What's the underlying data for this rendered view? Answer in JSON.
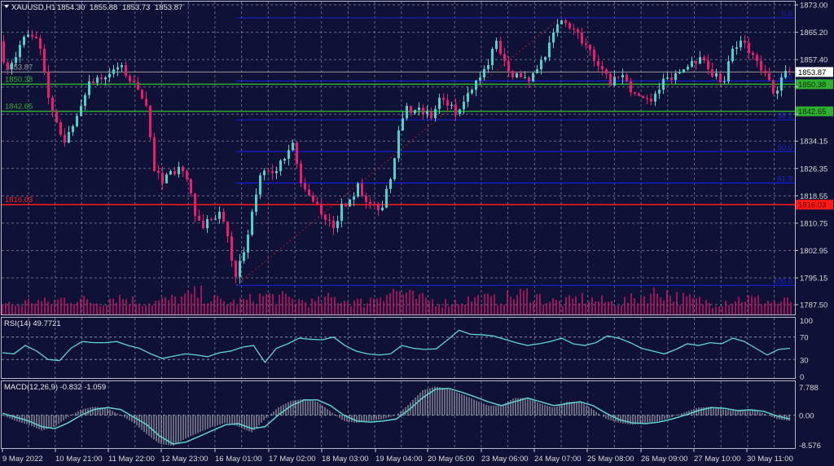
{
  "header": {
    "symbol": "XAUUSD,H1",
    "open": "1854.30",
    "high": "1855.88",
    "low": "1853.73",
    "close": "1853.87"
  },
  "colors": {
    "background": "#0f1136",
    "bull": "#4fd1c8",
    "bear": "#ee1c6c",
    "grid": "#8a8fa8",
    "fib": "#1420d0",
    "support": "#2fae2f",
    "resistance": "#ff1a1a",
    "current": "#9a9a9a",
    "volume": "#c8185e",
    "indicator": "#5fd3cf"
  },
  "chart_data": [
    {
      "type": "candlestick",
      "title": "XAUUSD,H1",
      "ylim": [
        1787.5,
        1873.0
      ],
      "y_ticks": [
        "1873.00",
        "1865.20",
        "1857.40",
        "1850.38",
        "1842.65",
        "1834.15",
        "1826.35",
        "1818.55",
        "1810.75",
        "1802.95",
        "1795.15",
        "1787.50"
      ],
      "x_ticks": [
        "9 May 2022",
        "10 May 21:00",
        "11 May 22:00",
        "12 May 23:00",
        "16 May 01:00",
        "17 May 02:00",
        "18 May 03:00",
        "19 May 04:00",
        "20 May 05:00",
        "23 May 06:00",
        "24 May 07:00",
        "25 May 08:00",
        "26 May 09:00",
        "27 May 10:00",
        "30 May 11:00"
      ],
      "grid": true,
      "closes": [
        1861.6,
        1854.6,
        1858.1,
        1863.9,
        1863.9,
        1860.5,
        1846.5,
        1839.5,
        1833.7,
        1838.4,
        1844.2,
        1851.2,
        1852.3,
        1852.3,
        1854.6,
        1855.8,
        1851.2,
        1848.8,
        1844.2,
        1825.6,
        1822.1,
        1825.6,
        1826.8,
        1823.3,
        1812.8,
        1809.3,
        1811.7,
        1814.0,
        1807.0,
        1795.4,
        1802.4,
        1814.0,
        1824.4,
        1825.6,
        1825.6,
        1829.1,
        1833.7,
        1822.1,
        1818.6,
        1816.3,
        1811.7,
        1809.3,
        1816.3,
        1817.5,
        1822.1,
        1816.8,
        1816.3,
        1815.2,
        1823.3,
        1837.2,
        1844.2,
        1843.0,
        1841.9,
        1840.7,
        1846.5,
        1844.2,
        1841.9,
        1845.4,
        1848.8,
        1852.3,
        1855.8,
        1862.8,
        1857.0,
        1852.3,
        1852.3,
        1851.2,
        1854.6,
        1858.1,
        1865.1,
        1868.6,
        1866.3,
        1865.1,
        1861.6,
        1857.0,
        1854.6,
        1850.0,
        1852.3,
        1851.2,
        1847.7,
        1846.5,
        1845.4,
        1848.8,
        1852.3,
        1853.5,
        1854.6,
        1857.0,
        1858.1,
        1854.6,
        1853.5,
        1851.2,
        1860.5,
        1862.8,
        1859.3,
        1857.0,
        1853.5,
        1847.7,
        1852.3,
        1853.87
      ],
      "volume_relative": [
        5,
        4,
        6,
        5,
        7,
        6,
        5,
        8,
        6,
        5,
        6,
        7,
        9,
        6,
        5,
        6,
        8,
        7,
        6,
        5,
        7,
        6,
        5,
        9,
        10,
        7,
        6,
        5,
        6,
        7,
        6,
        8,
        9,
        6,
        5,
        7,
        6,
        5,
        6,
        8,
        10,
        7,
        6,
        5,
        6,
        7,
        6,
        5,
        6
      ],
      "price_lines": [
        {
          "label": "1853.87",
          "price": 1853.87,
          "kind": "current"
        },
        {
          "label": "1850.38",
          "price": 1850.38,
          "kind": "support"
        },
        {
          "label": "1842.65",
          "price": 1842.65,
          "kind": "support"
        },
        {
          "label": "1816.03",
          "price": 1816.03,
          "kind": "resistance"
        }
      ],
      "fibonacci": [
        {
          "label": "0.0",
          "price": 1869.3
        },
        {
          "label": "23.6",
          "price": 1851.3
        },
        {
          "label": "38.2",
          "price": 1840.2
        },
        {
          "label": "50.0",
          "price": 1831.2
        },
        {
          "label": "61.8",
          "price": 1822.2
        },
        {
          "label": "100.0",
          "price": 1793.0
        }
      ]
    },
    {
      "type": "line",
      "title": "RSI(14) 49.7721",
      "ylim": [
        0,
        100
      ],
      "y_ticks": [
        "100",
        "70",
        "30",
        "0"
      ],
      "levels": [
        70,
        30
      ],
      "values": [
        42,
        40,
        55,
        45,
        30,
        28,
        50,
        62,
        60,
        60,
        62,
        55,
        50,
        40,
        32,
        36,
        40,
        38,
        35,
        42,
        45,
        52,
        55,
        25,
        50,
        58,
        68,
        66,
        65,
        70,
        55,
        45,
        40,
        38,
        40,
        55,
        50,
        48,
        49,
        65,
        82,
        75,
        74,
        72,
        66,
        60,
        55,
        58,
        62,
        68,
        58,
        55,
        60,
        72,
        68,
        60,
        50,
        45,
        40,
        48,
        58,
        55,
        60,
        58,
        68,
        62,
        50,
        38,
        48,
        50
      ]
    },
    {
      "type": "histogram+line",
      "title": "MACD(12,26,9) -0.832 -1.059",
      "ylim": [
        -8.576,
        7.788
      ],
      "y_ticks": [
        "7.788",
        "0.00",
        "-8.576"
      ],
      "main": [
        0,
        -1.5,
        -2.5,
        -4,
        -3,
        -0.5,
        1.5,
        2.2,
        1.8,
        0,
        -2,
        -5,
        -7.5,
        -8,
        -6,
        -4.5,
        -3,
        -2,
        -3,
        -4.5,
        -1,
        2,
        3.8,
        4.2,
        3.5,
        1,
        -1.5,
        -2,
        -1.5,
        -1,
        0,
        3,
        6.5,
        7.5,
        6.8,
        5.5,
        4,
        2.5,
        2.5,
        4.5,
        4.5,
        3,
        2,
        3.5,
        3.5,
        1.5,
        -1,
        -2,
        -2.5,
        -2,
        -1.5,
        -0.5,
        0.8,
        2,
        2.2,
        1.5,
        1,
        1.5,
        0.5,
        -1,
        -1.5
      ],
      "signal": [
        0.5,
        -0.5,
        -1.5,
        -3,
        -3.5,
        -2,
        0,
        1.5,
        2,
        1.5,
        -0.5,
        -2.5,
        -5.5,
        -7.5,
        -7,
        -5.5,
        -4,
        -2.5,
        -2.2,
        -3.5,
        -3,
        0,
        2.5,
        4,
        4,
        2.5,
        0,
        -1.5,
        -1.8,
        -1.5,
        -1,
        1.5,
        4.5,
        6.8,
        7,
        6,
        4.8,
        3.5,
        2.5,
        3.5,
        4.5,
        3.5,
        2.5,
        3,
        3.5,
        2.5,
        0.5,
        -1.2,
        -2,
        -2.2,
        -1.8,
        -1,
        0,
        1.2,
        2,
        1.8,
        1.2,
        1.4,
        1,
        -0.2,
        -1
      ]
    }
  ]
}
